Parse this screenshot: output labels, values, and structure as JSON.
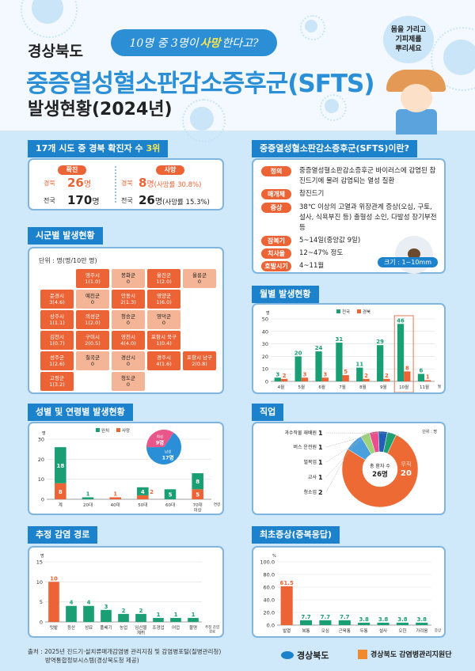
{
  "header": {
    "region": "경상북도",
    "bubble_pre": "10명 중 3명이 ",
    "bubble_hl": "사망",
    "bubble_post": "한다고?",
    "title": "중증열성혈소판감소증후군(SFTS)",
    "subtitle": "발생현황(2024년)",
    "tip": [
      "몸을 가리고",
      "기피제를",
      "뿌리세요"
    ]
  },
  "rank": {
    "heading": "17개 시도 중 경북 확진자 수 ",
    "heading_hl": "3위",
    "confirmed_label": "확진",
    "death_label": "사망",
    "gb_label": "경북",
    "nat_label": "전국",
    "gb_confirmed": "26",
    "nat_confirmed": "170",
    "unit": "명",
    "gb_death": "8",
    "gb_death_rate": "(사망률 30.8%)",
    "nat_death": "26",
    "nat_death_rate": "(사망률 15.3%)"
  },
  "map": {
    "heading": "시군별 발생현황",
    "unit": "단위 : 명(명/10만 명)",
    "colors": {
      "case": "#ec6436",
      "none": "#f4b597"
    },
    "regions": [
      {
        "name": "울릉군",
        "value": "0",
        "cases": 0
      },
      {
        "name": "영주시",
        "value": "1(1.0)",
        "cases": 1
      },
      {
        "name": "봉화군",
        "value": "0",
        "cases": 0
      },
      {
        "name": "울진군",
        "value": "1(2.0)",
        "cases": 1
      },
      {
        "name": "문경시",
        "value": "3(4.6)",
        "cases": 3
      },
      {
        "name": "예천군",
        "value": "0",
        "cases": 0
      },
      {
        "name": "안동시",
        "value": "2(1.3)",
        "cases": 2
      },
      {
        "name": "영양군",
        "value": "1(6.0)",
        "cases": 1
      },
      {
        "name": "상주시",
        "value": "1(1.1)",
        "cases": 1
      },
      {
        "name": "의성군",
        "value": "1(2.0)",
        "cases": 1
      },
      {
        "name": "청송군",
        "value": "0",
        "cases": 0
      },
      {
        "name": "영덕군",
        "value": "0",
        "cases": 0
      },
      {
        "name": "구미시",
        "value": "2(0.5)",
        "cases": 2
      },
      {
        "name": "포항시 북구",
        "value": "1(0.4)",
        "cases": 1
      },
      {
        "name": "김천시",
        "value": "1(0.7)",
        "cases": 1
      },
      {
        "name": "칠곡군",
        "value": "0",
        "cases": 0
      },
      {
        "name": "영천시",
        "value": "4(4.0)",
        "cases": 4
      },
      {
        "name": "성주군",
        "value": "1(2.6)",
        "cases": 1
      },
      {
        "name": "포항시 남구",
        "value": "2(0.8)",
        "cases": 2
      },
      {
        "name": "경산시",
        "value": "0",
        "cases": 0
      },
      {
        "name": "경주시",
        "value": "4(1.6)",
        "cases": 4
      },
      {
        "name": "고령군",
        "value": "1(3.2)",
        "cases": 1
      },
      {
        "name": "청도군",
        "value": "0",
        "cases": 0
      }
    ]
  },
  "about": {
    "heading": "중증열성혈소판감소증후군(SFTS)이란?",
    "rows": [
      {
        "label": "정의",
        "text": "중증열성혈소판감소증후군 바이러스에 감염된 참진드기에 물려 감염되는 열성 질환"
      },
      {
        "label": "매개체",
        "text": "참진드기"
      },
      {
        "label": "증상",
        "text": "38℃ 이상의 고열과 위장관계 증상(오심, 구토, 설사, 식욕부진 등) 출혈성 소인, 다발성 장기부전 등"
      },
      {
        "label": "잠복기",
        "text": "5~14일(중앙값 9일)"
      },
      {
        "label": "치사율",
        "text": "12~47% 정도"
      },
      {
        "label": "호발시기",
        "text": "4~11월"
      }
    ],
    "size": "크기 : 1~10mm"
  },
  "chart_data": [
    {
      "id": "monthly",
      "heading": "월별 발생현황",
      "type": "bar",
      "categories": [
        "4월",
        "5월",
        "6월",
        "7월",
        "8월",
        "9월",
        "10월",
        "11월"
      ],
      "series": [
        {
          "name": "전국",
          "values": [
            3,
            20,
            24,
            31,
            11,
            29,
            46,
            6
          ],
          "color": "#1a9e74"
        },
        {
          "name": "경북",
          "values": [
            2,
            3,
            3,
            5,
            2,
            2,
            8,
            1
          ],
          "color": "#ec6436"
        }
      ],
      "ylim": [
        0,
        50
      ],
      "yticks": [
        0,
        10,
        20,
        30,
        40,
        50
      ],
      "ylabel": "명",
      "xlabel": "월",
      "highlight": "10월",
      "legend": "top-center",
      "grid": true
    },
    {
      "id": "age",
      "heading": "성별 및 연령별 발생현황",
      "type": "bar",
      "stacked": true,
      "categories": [
        "계",
        "20대",
        "40대",
        "50대",
        "60대",
        "70대 이상"
      ],
      "series": [
        {
          "name": "사망",
          "values": [
            8,
            0,
            1,
            2,
            0,
            5
          ],
          "color": "#ec6436"
        },
        {
          "name": "완치",
          "values": [
            18,
            1,
            0,
            4,
            5,
            8
          ],
          "color": "#1a9e74"
        }
      ],
      "ylim": [
        0,
        30
      ],
      "yticks": [
        0,
        10,
        20,
        30
      ],
      "ylabel": "명",
      "xlabel": "연령",
      "legend": "top-center",
      "grid": true,
      "pie": {
        "type": "pie",
        "slices": [
          {
            "name": "남성",
            "label": "17명",
            "value": 17,
            "color": "#2a8fd6"
          },
          {
            "name": "여성",
            "label": "9명",
            "value": 9,
            "color": "#e9578a"
          }
        ]
      }
    },
    {
      "id": "job",
      "heading": "직업",
      "type": "pie",
      "donut": true,
      "unit": "단위 : 명",
      "center_label": "총 환자 수",
      "center_value": "26명",
      "slices": [
        {
          "name": "무직",
          "value": 20,
          "color": "#ee6a35"
        },
        {
          "name": "청소업",
          "value": 2,
          "color": "#4aa0dc"
        },
        {
          "name": "교사",
          "value": 1,
          "color": "#9fd37a"
        },
        {
          "name": "벌목업",
          "value": 1,
          "color": "#ec4d8c"
        },
        {
          "name": "버스 운전원",
          "value": 1,
          "color": "#1f5fb5"
        },
        {
          "name": "과수작물 재배원",
          "value": 1,
          "color": "#20a070"
        }
      ]
    },
    {
      "id": "route",
      "heading": "추정 감염 경로",
      "type": "bar",
      "categories": [
        "텃밭",
        "등산",
        "성묘",
        "풀베기",
        "농업",
        "임산물채취",
        "조경업",
        "어업",
        "불명"
      ],
      "series": [
        {
          "values": [
            10,
            4,
            4,
            3,
            2,
            2,
            1,
            1,
            1
          ]
        }
      ],
      "colors": {
        "top": "#ec6436",
        "rest": "#1a9e74"
      },
      "ylim": [
        0,
        15
      ],
      "yticks": [
        0,
        5,
        10,
        15
      ],
      "ylabel": "명",
      "xlabel": "추정 감염 경로",
      "grid": true
    },
    {
      "id": "symptom",
      "heading": "최초증상(중복응답)",
      "type": "bar",
      "categories": [
        "발열",
        "복통",
        "오심",
        "근육통",
        "두통",
        "설사",
        "오한",
        "가려움"
      ],
      "series": [
        {
          "values": [
            61.5,
            7.7,
            7.7,
            7.7,
            3.8,
            3.8,
            3.8,
            3.8
          ]
        }
      ],
      "colors": {
        "top": "#ec6436",
        "rest": "#1a9e74"
      },
      "ylim": [
        0,
        100
      ],
      "yticks": [
        0,
        20,
        40,
        60,
        80,
        100
      ],
      "ylabel": "%",
      "xlabel": "증상",
      "grid": true
    }
  ],
  "footer": {
    "source1": "출처 : 2025년 진드기·설치류매개감염병 관리지침 및 감염병포털(질병관리청)",
    "source2": "방역통합정보시스템(경상북도청 제공)",
    "logo1": "경상북도",
    "logo2": "경상북도 감염병관리지원단"
  }
}
